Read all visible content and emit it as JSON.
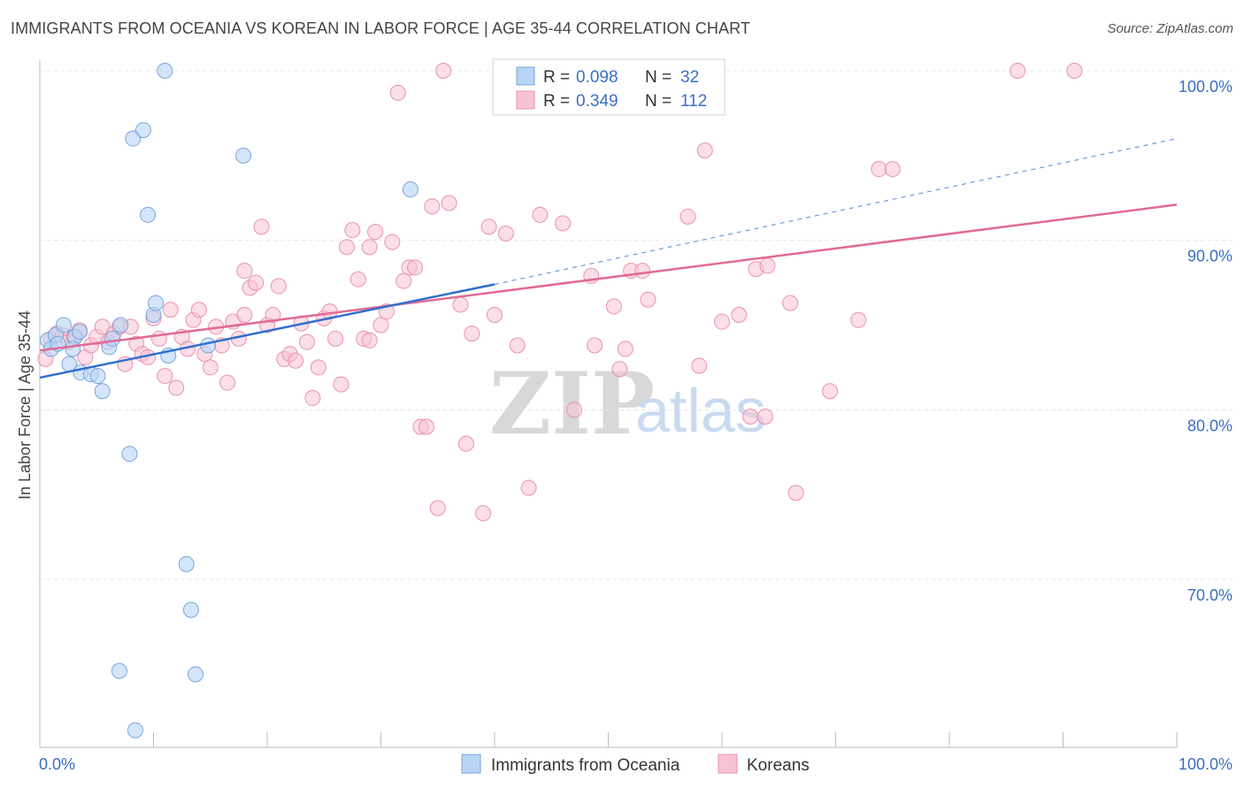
{
  "title": "IMMIGRANTS FROM OCEANIA VS KOREAN IN LABOR FORCE | AGE 35-44 CORRELATION CHART",
  "source": "Source: ZipAtlas.com",
  "watermark": {
    "zip": "ZIP",
    "atlas": "atlas"
  },
  "colors": {
    "oceania_fill": "#b8d3f5",
    "oceania_stroke": "#7aa6dc",
    "oceania_line": "#2f6fcf",
    "korean_fill": "#f7c3d4",
    "korean_stroke": "#e892ae",
    "korean_line": "#e06a95",
    "grid": "#e4e4e4",
    "tick_text": "#3a6fc4"
  },
  "legend_box": {
    "r_label": "R =",
    "n_label": "N =",
    "rows": [
      {
        "r": "0.098",
        "n": "32"
      },
      {
        "r": "0.349",
        "n": "112"
      }
    ]
  },
  "chart_data": {
    "type": "scatter",
    "title": "IMMIGRANTS FROM OCEANIA VS KOREAN IN LABOR FORCE | AGE 35-44 CORRELATION CHART",
    "xlabel": "",
    "ylabel": "In Labor Force | Age 35-44",
    "xlim": [
      0,
      100
    ],
    "ylim": [
      60.5,
      101.5
    ],
    "x_tick_labels": [
      "0.0%",
      "100.0%"
    ],
    "y_ticks": [
      70,
      80,
      90,
      100
    ],
    "y_tick_labels": [
      "70.0%",
      "80.0%",
      "90.0%",
      "100.0%"
    ],
    "grid": true,
    "legend_position": "bottom-center",
    "series": [
      {
        "name": "Immigrants from Oceania",
        "r": 0.098,
        "n": 32,
        "trend": {
          "x0": 0,
          "y0": 81.9,
          "x1": 40,
          "y1": 87.4,
          "dash_to_x": 100,
          "dash_to_y": 96.0
        },
        "points": [
          [
            0.7,
            84.1
          ],
          [
            1.0,
            83.6
          ],
          [
            1.4,
            84.4
          ],
          [
            2.1,
            85.0
          ],
          [
            2.6,
            82.7
          ],
          [
            3.1,
            84.3
          ],
          [
            3.5,
            84.6
          ],
          [
            3.6,
            82.2
          ],
          [
            4.5,
            82.1
          ],
          [
            5.1,
            82.0
          ],
          [
            5.5,
            81.1
          ],
          [
            6.1,
            83.7
          ],
          [
            6.4,
            84.2
          ],
          [
            7.1,
            85.0
          ],
          [
            7.9,
            77.4
          ],
          [
            8.2,
            96.0
          ],
          [
            9.1,
            96.5
          ],
          [
            9.5,
            91.5
          ],
          [
            10.0,
            85.6
          ],
          [
            10.2,
            86.3
          ],
          [
            11.0,
            100.0
          ],
          [
            11.3,
            83.2
          ],
          [
            12.9,
            70.9
          ],
          [
            13.3,
            68.2
          ],
          [
            13.7,
            64.4
          ],
          [
            14.8,
            83.8
          ],
          [
            17.9,
            95.0
          ],
          [
            7.0,
            64.6
          ],
          [
            8.4,
            61.1
          ],
          [
            32.6,
            93.0
          ],
          [
            1.6,
            83.9
          ],
          [
            2.9,
            83.6
          ]
        ]
      },
      {
        "name": "Koreans",
        "r": 0.349,
        "n": 112,
        "trend": {
          "x0": 0,
          "y0": 83.5,
          "x1": 100,
          "y1": 92.1
        },
        "points": [
          [
            0.5,
            83.0
          ],
          [
            1.0,
            84.2
          ],
          [
            1.5,
            84.5
          ],
          [
            2.0,
            84.4
          ],
          [
            2.5,
            84.0
          ],
          [
            3.0,
            84.3
          ],
          [
            3.5,
            84.7
          ],
          [
            4.0,
            83.1
          ],
          [
            4.5,
            83.8
          ],
          [
            5.0,
            84.3
          ],
          [
            5.5,
            84.9
          ],
          [
            6.0,
            84.0
          ],
          [
            6.5,
            84.5
          ],
          [
            7.0,
            84.9
          ],
          [
            7.5,
            82.7
          ],
          [
            8.0,
            84.9
          ],
          [
            8.5,
            83.9
          ],
          [
            9.0,
            83.3
          ],
          [
            9.5,
            83.1
          ],
          [
            10.0,
            85.4
          ],
          [
            10.5,
            84.2
          ],
          [
            11.0,
            82.0
          ],
          [
            11.5,
            85.9
          ],
          [
            12.0,
            81.3
          ],
          [
            12.5,
            84.3
          ],
          [
            13.0,
            83.6
          ],
          [
            13.5,
            85.3
          ],
          [
            14.0,
            85.9
          ],
          [
            14.5,
            83.3
          ],
          [
            15.0,
            82.5
          ],
          [
            15.5,
            84.9
          ],
          [
            16.0,
            83.8
          ],
          [
            16.5,
            81.6
          ],
          [
            17.0,
            85.2
          ],
          [
            17.5,
            84.2
          ],
          [
            18.0,
            85.6
          ],
          [
            18.5,
            87.2
          ],
          [
            19.0,
            87.5
          ],
          [
            19.5,
            90.8
          ],
          [
            20.0,
            85.0
          ],
          [
            20.5,
            85.6
          ],
          [
            21.0,
            87.3
          ],
          [
            21.5,
            83.0
          ],
          [
            22.0,
            83.3
          ],
          [
            22.5,
            82.9
          ],
          [
            23.0,
            85.1
          ],
          [
            23.5,
            84.0
          ],
          [
            24.0,
            80.7
          ],
          [
            24.5,
            82.5
          ],
          [
            25.0,
            85.4
          ],
          [
            25.5,
            85.8
          ],
          [
            26.0,
            84.2
          ],
          [
            26.5,
            81.5
          ],
          [
            27.0,
            89.6
          ],
          [
            27.5,
            90.6
          ],
          [
            28.0,
            87.7
          ],
          [
            28.5,
            84.2
          ],
          [
            29.0,
            89.6
          ],
          [
            29.5,
            90.5
          ],
          [
            30.0,
            85.0
          ],
          [
            30.5,
            85.8
          ],
          [
            31.0,
            89.9
          ],
          [
            31.5,
            98.7
          ],
          [
            32.0,
            87.6
          ],
          [
            32.5,
            88.4
          ],
          [
            33.0,
            88.4
          ],
          [
            33.5,
            79.0
          ],
          [
            34.0,
            79.0
          ],
          [
            34.5,
            92.0
          ],
          [
            35.0,
            74.2
          ],
          [
            35.5,
            100.0
          ],
          [
            36.0,
            92.2
          ],
          [
            37.0,
            86.2
          ],
          [
            37.5,
            78.0
          ],
          [
            38.0,
            84.5
          ],
          [
            39.0,
            73.9
          ],
          [
            39.5,
            90.8
          ],
          [
            40.0,
            85.6
          ],
          [
            41.0,
            90.4
          ],
          [
            42.0,
            83.8
          ],
          [
            43.0,
            75.4
          ],
          [
            44.0,
            91.5
          ],
          [
            46.0,
            91.0
          ],
          [
            47.0,
            80.0
          ],
          [
            48.5,
            87.9
          ],
          [
            48.8,
            83.8
          ],
          [
            50.5,
            86.1
          ],
          [
            51.0,
            82.4
          ],
          [
            51.5,
            83.6
          ],
          [
            52.0,
            88.2
          ],
          [
            53.0,
            88.2
          ],
          [
            53.5,
            86.5
          ],
          [
            57.0,
            91.4
          ],
          [
            58.0,
            82.6
          ],
          [
            58.5,
            95.3
          ],
          [
            60.0,
            85.2
          ],
          [
            61.5,
            85.6
          ],
          [
            62.5,
            79.6
          ],
          [
            63.0,
            88.3
          ],
          [
            63.8,
            79.6
          ],
          [
            64.0,
            88.5
          ],
          [
            66.0,
            86.3
          ],
          [
            66.5,
            75.1
          ],
          [
            69.5,
            81.1
          ],
          [
            72.0,
            85.3
          ],
          [
            73.8,
            94.2
          ],
          [
            75.0,
            94.2
          ],
          [
            86.0,
            100.0
          ],
          [
            91.0,
            100.0
          ],
          [
            57.0,
            100.0
          ],
          [
            29.0,
            84.1
          ],
          [
            18.0,
            88.2
          ]
        ]
      }
    ]
  }
}
